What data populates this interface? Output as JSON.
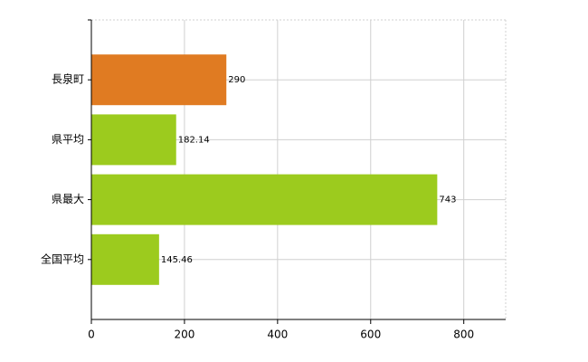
{
  "chart_data": {
    "type": "bar",
    "orientation": "horizontal",
    "categories": [
      "長泉町",
      "県平均",
      "県最大",
      "全国平均"
    ],
    "values": [
      290,
      182.14,
      743,
      145.46
    ],
    "colors": [
      "#e07b22",
      "#9ccb1e",
      "#9ccb1e",
      "#9ccb1e"
    ],
    "xlim": [
      0,
      890
    ],
    "xticks": [
      0,
      200,
      400,
      600,
      800
    ],
    "grid": true
  }
}
